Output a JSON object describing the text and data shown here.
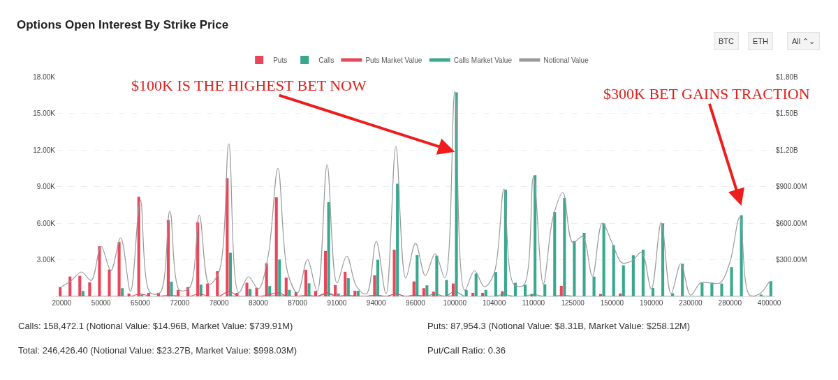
{
  "chart_data": {
    "type": "bar",
    "title": "Options Open Interest By Strike Price",
    "categories": [
      "20000",
      null,
      null,
      null,
      "50000",
      null,
      null,
      null,
      "65000",
      null,
      null,
      null,
      "72000",
      null,
      null,
      null,
      "78000",
      null,
      null,
      null,
      "83000",
      null,
      null,
      null,
      "87000",
      null,
      null,
      null,
      "91000",
      null,
      null,
      null,
      "94000",
      null,
      null,
      null,
      "96000",
      null,
      null,
      null,
      "100000",
      null,
      null,
      null,
      "104000",
      null,
      null,
      null,
      "110000",
      null,
      null,
      null,
      "125000",
      null,
      null,
      null,
      "150000",
      null,
      null,
      null,
      "190000",
      null,
      null,
      null,
      "230000",
      null,
      null,
      null,
      "280000",
      null,
      null,
      null,
      "400000"
    ],
    "series": [
      {
        "name": "Puts",
        "color": "#e8465a",
        "values": [
          760,
          1620,
          1680,
          1150,
          4100,
          2200,
          4450,
          230,
          8160,
          290,
          290,
          6260,
          530,
          760,
          6070,
          1050,
          2060,
          9680,
          290,
          1110,
          700,
          2710,
          8120,
          1530,
          340,
          2180,
          440,
          3720,
          920,
          2010,
          460,
          0,
          1720,
          0,
          3820,
          0,
          1220,
          670,
          380,
          0,
          1050,
          0,
          290,
          290,
          0,
          420,
          0,
          0,
          190,
          0,
          0,
          860,
          0,
          0,
          0,
          190,
          0,
          230,
          0,
          0,
          0,
          0,
          0,
          0,
          0,
          0,
          0,
          0,
          0,
          0,
          0,
          0,
          0
        ]
      },
      {
        "name": "Calls",
        "color": "#3aa88f",
        "values": [
          null,
          0,
          440,
          0,
          null,
          0,
          670,
          0,
          150,
          0,
          0,
          1200,
          0,
          0,
          960,
          0,
          0,
          3570,
          0,
          610,
          0,
          840,
          3020,
          530,
          0,
          1070,
          0,
          7720,
          230,
          1490,
          460,
          0,
          3000,
          0,
          9230,
          0,
          3380,
          900,
          3340,
          1340,
          16710,
          530,
          1870,
          530,
          1990,
          8750,
          1110,
          960,
          9930,
          990,
          6910,
          8060,
          4530,
          5200,
          1620,
          5980,
          4200,
          2540,
          3360,
          3820,
          690,
          5980,
          250,
          2670,
          null,
          1110,
          1110,
          1050,
          2390,
          6650,
          0,
          150,
          1240
        ]
      },
      {
        "name": "Puts Market Value",
        "type": "line",
        "axis": "y2",
        "color": "#e8465a",
        "values": [
          0,
          0,
          0,
          0,
          0,
          0,
          0,
          0,
          20000000,
          0,
          0,
          10000000,
          0,
          0,
          20000000,
          0,
          0,
          40000000,
          0,
          0,
          0,
          10000000,
          30000000,
          0,
          0,
          10000000,
          0,
          30000000,
          0,
          10000000,
          0,
          0,
          10000000,
          0,
          20000000,
          0,
          10000000,
          0,
          0,
          0,
          10000000,
          null,
          null,
          null,
          null,
          null,
          null,
          null,
          null,
          null,
          null,
          null,
          null,
          null,
          null,
          null,
          null,
          null,
          null,
          null,
          null,
          null,
          null,
          null,
          null,
          null,
          null,
          null,
          null,
          null,
          null,
          null,
          null
        ]
      },
      {
        "name": "Calls Market Value",
        "type": "line",
        "axis": "y2",
        "color": "#3aa88f",
        "values": [
          null,
          null,
          null,
          null,
          null,
          null,
          null,
          null,
          null,
          null,
          null,
          null,
          null,
          null,
          null,
          null,
          null,
          10000000,
          0,
          0,
          null,
          0,
          10000000,
          0,
          0,
          0,
          0,
          20000000,
          0,
          0,
          0,
          0,
          10000000,
          0,
          20000000,
          0,
          10000000,
          0,
          20000000,
          0,
          40000000,
          0,
          0,
          0,
          0,
          15000000,
          0,
          0,
          15000000,
          0,
          0,
          10000000,
          0,
          0,
          0,
          0,
          0,
          0,
          0,
          0,
          0,
          0,
          0,
          0,
          0,
          0,
          0,
          0,
          0,
          0,
          null,
          0,
          0
        ]
      },
      {
        "name": "Notional Value",
        "type": "line",
        "axis": "y2",
        "color": "#9a9a9a",
        "values": [
          80000000,
          130000000,
          200000000,
          130000000,
          410000000,
          210000000,
          480000000,
          40000000,
          790000000,
          30000000,
          30000000,
          700000000,
          50000000,
          70000000,
          665000000,
          100000000,
          200000000,
          1250000000,
          30000000,
          160000000,
          60000000,
          330000000,
          1050000000,
          190000000,
          30000000,
          300000000,
          40000000,
          1080000000,
          110000000,
          330000000,
          80000000,
          20000000,
          450000000,
          20000000,
          1230000000,
          150000000,
          435000000,
          170000000,
          350000000,
          150000000,
          1680000000,
          50000000,
          210000000,
          80000000,
          190000000,
          880000000,
          100000000,
          90000000,
          980000000,
          100000000,
          650000000,
          850000000,
          440000000,
          490000000,
          165000000,
          600000000,
          440000000,
          275000000,
          290000000,
          360000000,
          60000000,
          605000000,
          20000000,
          267000000,
          10000000,
          110000000,
          110000000,
          110000000,
          280000000,
          650000000,
          10000000,
          20000000,
          120000000
        ]
      }
    ],
    "ylim": [
      0,
      18000
    ],
    "yticks": [
      {
        "value": 3000,
        "label": "3.00K"
      },
      {
        "value": 6000,
        "label": "6.00K"
      },
      {
        "value": 9000,
        "label": "9.00K"
      },
      {
        "value": 12000,
        "label": "12.00K"
      },
      {
        "value": 15000,
        "label": "15.00K"
      },
      {
        "value": 18000,
        "label": "18.00K"
      }
    ],
    "y2lim": [
      0,
      1800000000
    ],
    "y2ticks": [
      {
        "value": 300000000,
        "label": "$300.00M"
      },
      {
        "value": 600000000,
        "label": "$600.00M"
      },
      {
        "value": 900000000,
        "label": "$900.00M"
      },
      {
        "value": 1200000000,
        "label": "$1.20B"
      },
      {
        "value": 1500000000,
        "label": "$1.50B"
      },
      {
        "value": 1800000000,
        "label": "$1.80B"
      }
    ],
    "grid": "y",
    "legend": "top",
    "annotations": [
      {
        "text": "$100K IS THE HIGHEST BET NOW",
        "x": "100000",
        "y": 11850
      },
      "$300K BET GAINS TRACTION",
      "Calls: 158,472.1 (Notional Value: $14.96B, Market Value: $739.91M)",
      "Puts: 87,954.3 (Notional Value: $8.31B, Market Value: $258.12M)",
      "Total: 246,426.40 (Notional Value: $23.27B, Market Value: $998.03M)",
      "Put/Call Ratio: 0.36",
      "BTC",
      "ETH",
      "All ⌃⌄"
    ]
  }
}
